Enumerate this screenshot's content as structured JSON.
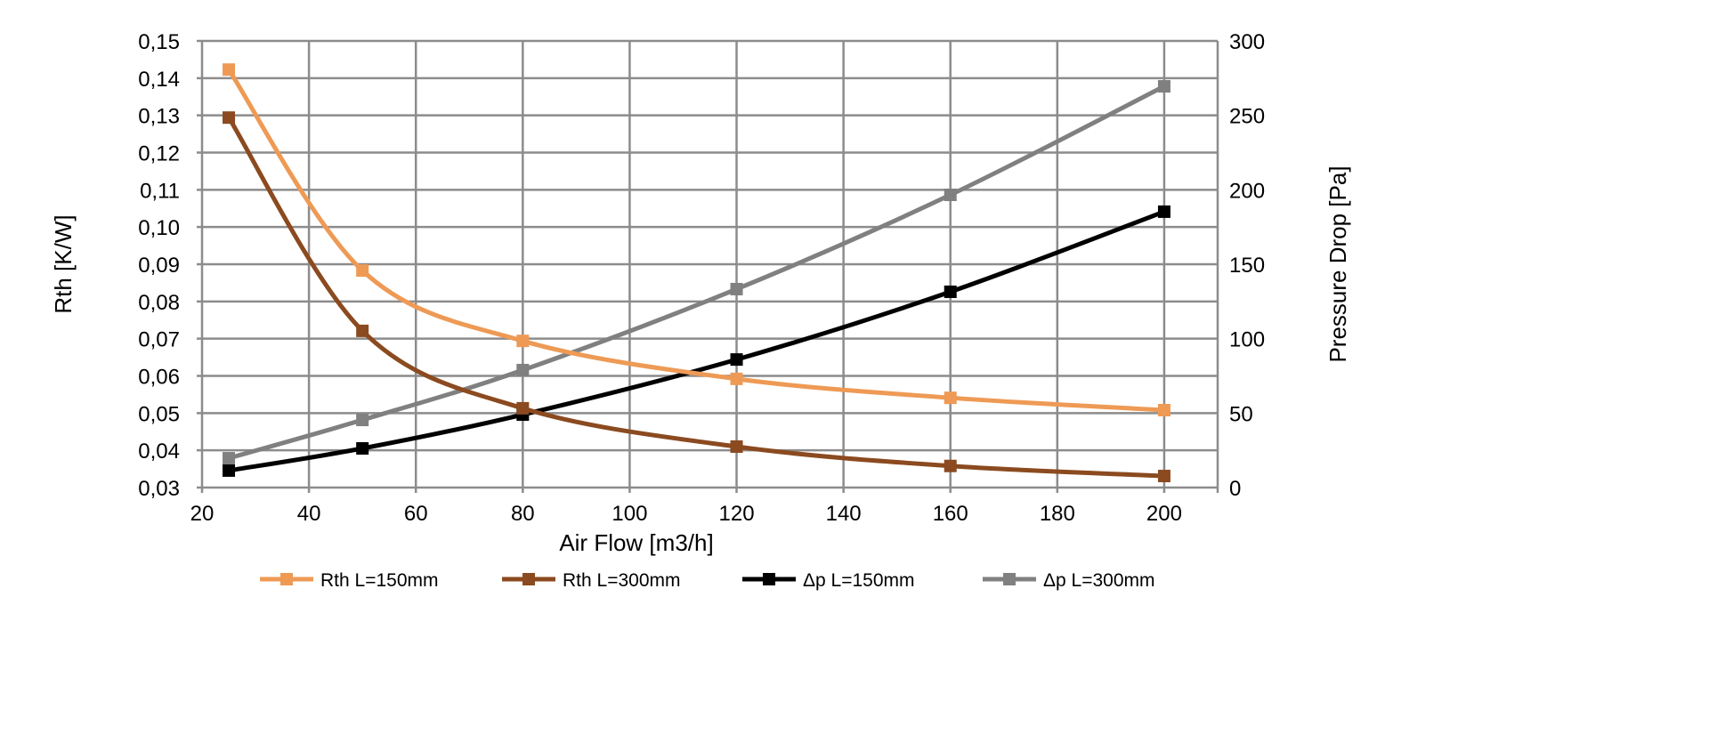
{
  "chart_data": {
    "type": "line",
    "title": "",
    "xlabel": "Air Flow [m3/h]",
    "ylabel": "Rth [K/W]",
    "y2label": "Pressure Drop [Pa]",
    "xlim": [
      20,
      210
    ],
    "ylim": [
      0.03,
      0.15
    ],
    "y2lim": [
      0,
      300
    ],
    "grid": true,
    "legend_position": "bottom",
    "x_ticks": [
      "20",
      "40",
      "60",
      "80",
      "100",
      "120",
      "140",
      "160",
      "180",
      "200"
    ],
    "y_ticks": [
      "0,03",
      "0,04",
      "0,05",
      "0,06",
      "0,07",
      "0,08",
      "0,09",
      "0,10",
      "0,11",
      "0,12",
      "0,13",
      "0,14",
      "0,15"
    ],
    "y2_ticks": [
      "0",
      "50",
      "100",
      "150",
      "200",
      "250",
      "300"
    ],
    "x": [
      25,
      50,
      80,
      120,
      160,
      200
    ],
    "series": [
      {
        "name": "Rth L=150mm",
        "axis": "left",
        "color": "#EE9A55",
        "values": [
          0.1423,
          0.0883,
          0.0694,
          0.0592,
          0.0541,
          0.0508
        ]
      },
      {
        "name": "Rth L=300mm",
        "axis": "left",
        "color": "#8B4A1F",
        "values": [
          0.1294,
          0.0721,
          0.0513,
          0.041,
          0.0358,
          0.0331
        ]
      },
      {
        "name": "Δp L=150mm",
        "axis": "right",
        "color": "#000000",
        "values": [
          11.4,
          26.3,
          49,
          86,
          131.5,
          185.3
        ]
      },
      {
        "name": "Δp L=300mm",
        "axis": "right",
        "color": "#808080",
        "values": [
          19.7,
          45.4,
          78.9,
          133.3,
          196.6,
          269.5
        ]
      }
    ]
  }
}
